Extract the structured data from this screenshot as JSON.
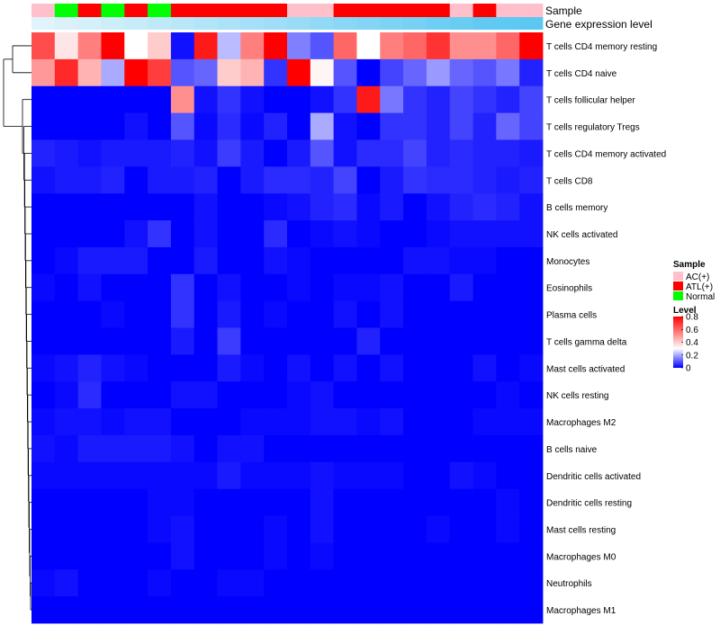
{
  "chart_data": {
    "type": "heatmap",
    "title": "",
    "annotation_tracks": [
      {
        "name": "Sample",
        "values": [
          "AC(+)",
          "Normal",
          "ATL(+)",
          "Normal",
          "ATL(+)",
          "Normal",
          "ATL(+)",
          "ATL(+)",
          "ATL(+)",
          "ATL(+)",
          "ATL(+)",
          "AC(+)",
          "AC(+)",
          "ATL(+)",
          "ATL(+)",
          "ATL(+)",
          "ATL(+)",
          "ATL(+)",
          "AC(+)",
          "ATL(+)",
          "AC(+)",
          "AC(+)"
        ]
      },
      {
        "name": "Gene expression level",
        "values": [
          0.05,
          0.1,
          0.14,
          0.19,
          0.24,
          0.29,
          0.33,
          0.38,
          0.43,
          0.48,
          0.52,
          0.57,
          0.62,
          0.67,
          0.71,
          0.76,
          0.81,
          0.86,
          0.9,
          0.95,
          0.98,
          1.0
        ]
      }
    ],
    "rows": [
      "T cells CD4 memory resting",
      "T cells CD4 naive",
      "T cells follicular helper",
      "T cells regulatory  Tregs",
      "T cells CD4 memory activated",
      "T cells CD8",
      "B cells memory",
      "NK cells activated",
      "Monocytes",
      "Eosinophils",
      "Plasma cells",
      "T cells gamma delta",
      "Mast cells activated",
      "NK cells resting",
      "Macrophages M2",
      "B cells naive",
      "Dendritic cells activated",
      "Dendritic cells resting",
      "Mast cells resting",
      "Macrophages M0",
      "Neutrophils",
      "Macrophages M1"
    ],
    "matrix": [
      [
        0.65,
        0.35,
        0.55,
        0.8,
        0.3,
        0.4,
        0.02,
        0.75,
        0.22,
        0.55,
        0.8,
        0.15,
        0.1,
        0.6,
        0.3,
        0.55,
        0.6,
        0.7,
        0.52,
        0.52,
        0.6,
        0.8
      ],
      [
        0.5,
        0.72,
        0.45,
        0.2,
        0.8,
        0.68,
        0.1,
        0.12,
        0.4,
        0.45,
        0.06,
        0.8,
        0.32,
        0.1,
        0.0,
        0.08,
        0.12,
        0.18,
        0.12,
        0.1,
        0.14,
        0.04
      ],
      [
        0.0,
        0.0,
        0.0,
        0.0,
        0.0,
        0.0,
        0.52,
        0.02,
        0.06,
        0.02,
        0.0,
        0.0,
        0.02,
        0.06,
        0.75,
        0.14,
        0.06,
        0.04,
        0.08,
        0.06,
        0.04,
        0.08
      ],
      [
        0.0,
        0.0,
        0.0,
        0.0,
        0.02,
        0.0,
        0.1,
        0.01,
        0.05,
        0.01,
        0.04,
        0.0,
        0.2,
        0.02,
        0.0,
        0.06,
        0.06,
        0.04,
        0.08,
        0.04,
        0.12,
        0.08
      ],
      [
        0.04,
        0.03,
        0.02,
        0.03,
        0.03,
        0.03,
        0.04,
        0.02,
        0.07,
        0.03,
        0.0,
        0.03,
        0.1,
        0.02,
        0.05,
        0.05,
        0.08,
        0.04,
        0.05,
        0.04,
        0.04,
        0.03
      ],
      [
        0.02,
        0.03,
        0.03,
        0.04,
        0.0,
        0.03,
        0.03,
        0.04,
        0.0,
        0.03,
        0.05,
        0.05,
        0.04,
        0.08,
        0.0,
        0.03,
        0.06,
        0.05,
        0.05,
        0.04,
        0.03,
        0.04
      ],
      [
        0.0,
        0.0,
        0.0,
        0.0,
        0.0,
        0.0,
        0.0,
        0.02,
        0.0,
        0.0,
        0.01,
        0.02,
        0.04,
        0.05,
        0.01,
        0.03,
        0.0,
        0.02,
        0.04,
        0.05,
        0.04,
        0.02
      ],
      [
        0.0,
        0.0,
        0.0,
        0.0,
        0.02,
        0.06,
        0.0,
        0.02,
        0.0,
        0.0,
        0.05,
        0.0,
        0.01,
        0.02,
        0.01,
        0.0,
        0.0,
        0.01,
        0.02,
        0.02,
        0.02,
        0.02
      ],
      [
        0.0,
        0.01,
        0.03,
        0.03,
        0.03,
        0.0,
        0.0,
        0.03,
        0.0,
        0.0,
        0.02,
        0.01,
        0.0,
        0.0,
        0.0,
        0.0,
        0.02,
        0.02,
        0.01,
        0.01,
        0.0,
        0.0
      ],
      [
        0.01,
        0.0,
        0.02,
        0.0,
        0.0,
        0.0,
        0.06,
        0.0,
        0.02,
        0.0,
        0.0,
        0.01,
        0.0,
        0.01,
        0.01,
        0.02,
        0.0,
        0.0,
        0.03,
        0.0,
        0.0,
        0.0
      ],
      [
        0.0,
        0.0,
        0.0,
        0.01,
        0.0,
        0.0,
        0.06,
        0.0,
        0.03,
        0.0,
        0.01,
        0.0,
        0.0,
        0.02,
        0.0,
        0.02,
        0.0,
        0.0,
        0.0,
        0.0,
        0.0,
        0.0
      ],
      [
        0.0,
        0.0,
        0.0,
        0.0,
        0.0,
        0.0,
        0.03,
        0.0,
        0.07,
        0.0,
        0.0,
        0.0,
        0.0,
        0.0,
        0.04,
        0.0,
        0.0,
        0.0,
        0.0,
        0.0,
        0.0,
        0.0
      ],
      [
        0.01,
        0.02,
        0.04,
        0.02,
        0.01,
        0.0,
        0.0,
        0.0,
        0.03,
        0.01,
        0.0,
        0.02,
        0.0,
        0.02,
        0.0,
        0.02,
        0.0,
        0.0,
        0.0,
        0.02,
        0.0,
        0.01
      ],
      [
        0.0,
        0.01,
        0.05,
        0.0,
        0.0,
        0.0,
        0.02,
        0.02,
        0.0,
        0.0,
        0.0,
        0.01,
        0.02,
        0.0,
        0.0,
        0.0,
        0.0,
        0.0,
        0.0,
        0.0,
        0.01,
        0.0
      ],
      [
        0.01,
        0.02,
        0.02,
        0.01,
        0.02,
        0.02,
        0.0,
        0.0,
        0.0,
        0.01,
        0.01,
        0.01,
        0.02,
        0.02,
        0.01,
        0.02,
        0.0,
        0.0,
        0.0,
        0.01,
        0.01,
        0.01
      ],
      [
        0.02,
        0.01,
        0.03,
        0.03,
        0.03,
        0.03,
        0.02,
        0.0,
        0.02,
        0.02,
        0.0,
        0.0,
        0.0,
        0.0,
        0.0,
        0.0,
        0.0,
        0.0,
        0.0,
        0.0,
        0.0,
        0.0
      ],
      [
        0.01,
        0.01,
        0.01,
        0.01,
        0.01,
        0.01,
        0.01,
        0.01,
        0.03,
        0.01,
        0.01,
        0.01,
        0.02,
        0.01,
        0.01,
        0.01,
        0.0,
        0.0,
        0.02,
        0.01,
        0.0,
        0.0
      ],
      [
        0.0,
        0.0,
        0.0,
        0.0,
        0.0,
        0.01,
        0.01,
        0.0,
        0.0,
        0.0,
        0.0,
        0.0,
        0.02,
        0.0,
        0.0,
        0.0,
        0.0,
        0.0,
        0.0,
        0.0,
        0.01,
        0.0
      ],
      [
        0.0,
        0.0,
        0.0,
        0.0,
        0.0,
        0.01,
        0.02,
        0.0,
        0.0,
        0.0,
        0.01,
        0.0,
        0.02,
        0.0,
        0.0,
        0.0,
        0.0,
        0.01,
        0.0,
        0.0,
        0.01,
        0.0
      ],
      [
        0.0,
        0.0,
        0.0,
        0.0,
        0.0,
        0.0,
        0.02,
        0.0,
        0.0,
        0.0,
        0.01,
        0.0,
        0.01,
        0.0,
        0.0,
        0.0,
        0.0,
        0.0,
        0.0,
        0.0,
        0.0,
        0.0
      ],
      [
        0.01,
        0.02,
        0.0,
        0.0,
        0.0,
        0.01,
        0.0,
        0.0,
        0.01,
        0.01,
        0.0,
        0.0,
        0.0,
        0.0,
        0.0,
        0.0,
        0.0,
        0.0,
        0.0,
        0.0,
        0.0,
        0.0
      ],
      [
        0.0,
        0.0,
        0.0,
        0.0,
        0.0,
        0.0,
        0.0,
        0.0,
        0.0,
        0.0,
        0.0,
        0.0,
        0.0,
        0.0,
        0.0,
        0.0,
        0.0,
        0.0,
        0.0,
        0.0,
        0.0,
        0.0
      ]
    ],
    "color_scale": {
      "min": 0,
      "mid": 0.3,
      "max": 0.8,
      "low_color": "#0000ff",
      "mid_color": "#ffffff",
      "high_color": "#ff0000"
    },
    "sample_colors": {
      "AC(+)": "#ffc0cb",
      "ATL(+)": "#ff0000",
      "Normal": "#00ff00"
    },
    "expression_track_colors": [
      "#e8f6fb",
      "#5bc8f2"
    ],
    "legend": {
      "sample_title": "Sample",
      "sample_entries": [
        "AC(+)",
        "ATL(+)",
        "Normal"
      ],
      "level_title": "Level",
      "level_ticks": [
        0.8,
        0.6,
        0.4,
        0.2,
        0
      ]
    },
    "dendrogram": "rows clustered (hierarchical), shown on left"
  }
}
